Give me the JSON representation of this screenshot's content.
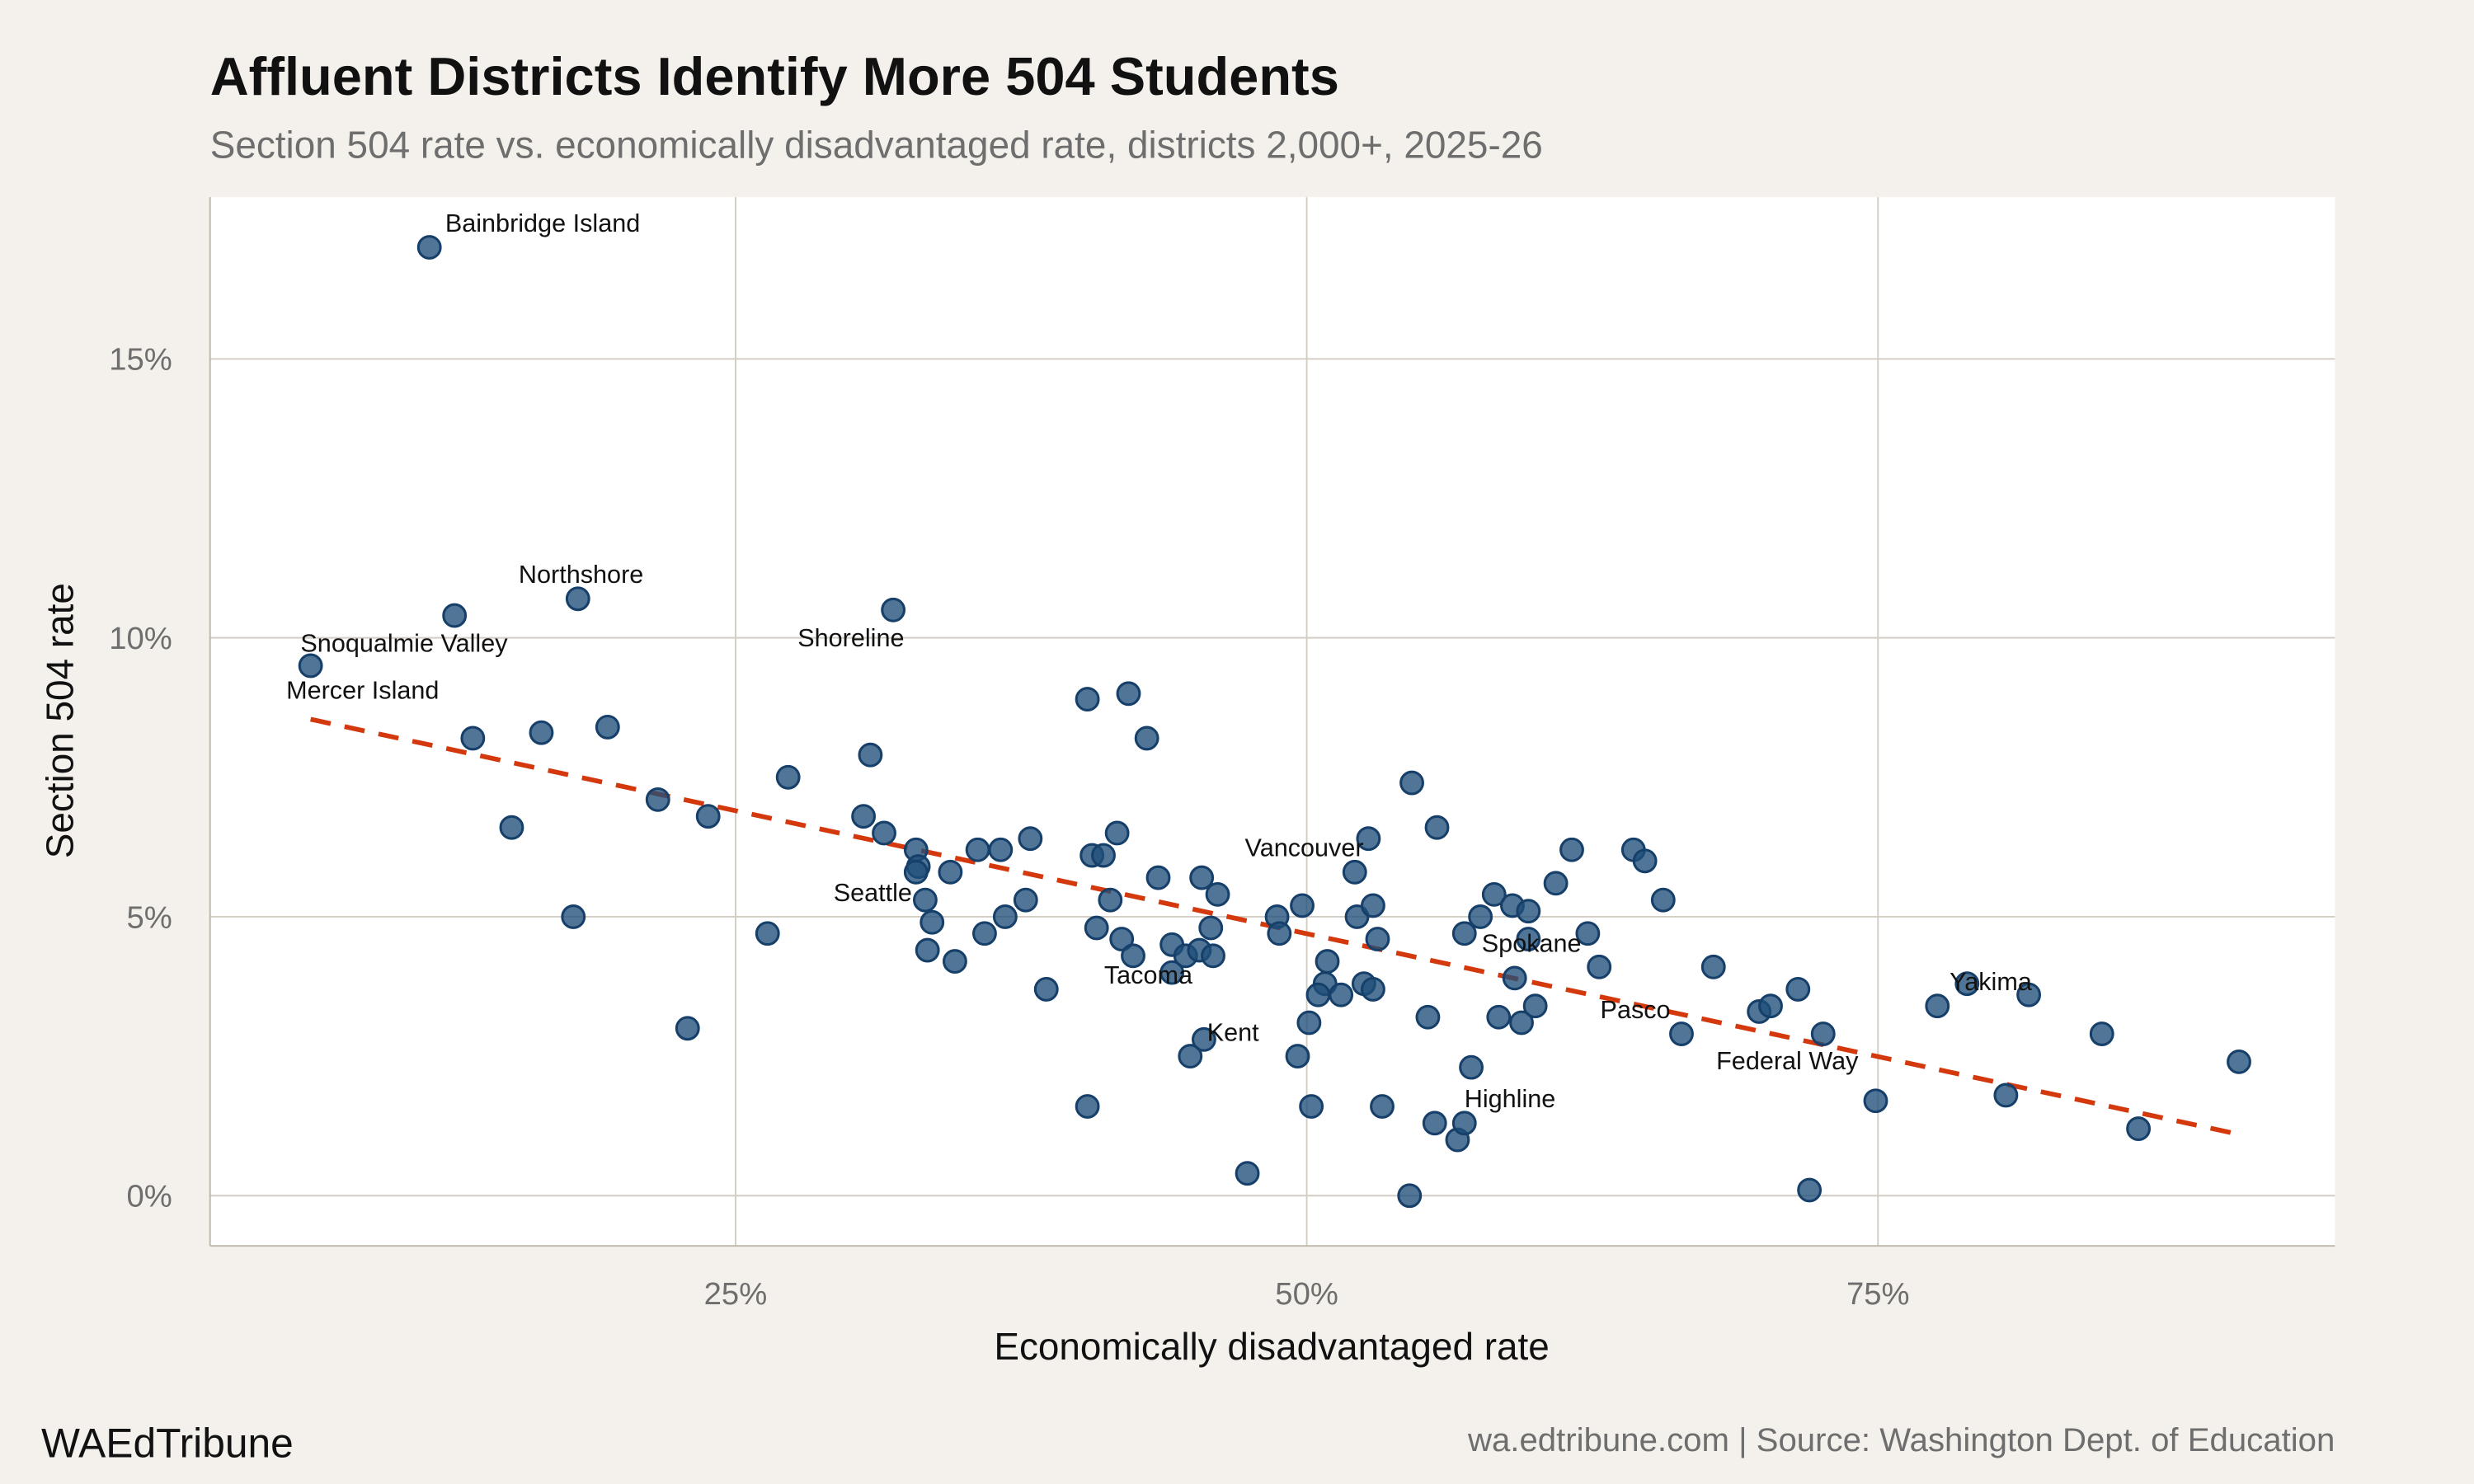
{
  "header": {
    "title": "Affluent Districts Identify More 504 Students",
    "subtitle": "Section 504 rate vs. economically disadvantaged rate, districts 2,000+, 2025-26"
  },
  "footer": {
    "brand": "WAEdTribune",
    "source": "wa.edtribune.com | Source: Washington Dept. of Education"
  },
  "colors": {
    "background": "#f4f1ec",
    "panel": "#ffffff",
    "grid": "#d3cdc3",
    "point": "#1f4e79",
    "trend": "#d4380d"
  },
  "chart_data": {
    "type": "scatter",
    "xlabel": "Economically disadvantaged rate",
    "ylabel": "Section 504 rate",
    "xlim": [
      2,
      95
    ],
    "ylim": [
      -0.9,
      17.9
    ],
    "x_ticks": [
      {
        "value": 25,
        "label": "25%"
      },
      {
        "value": 50,
        "label": "50%"
      },
      {
        "value": 75,
        "label": "75%"
      }
    ],
    "y_ticks": [
      {
        "value": 0,
        "label": "0%"
      },
      {
        "value": 5,
        "label": "5%"
      },
      {
        "value": 10,
        "label": "10%"
      },
      {
        "value": 15,
        "label": "15%"
      }
    ],
    "grid": true,
    "trend_line": {
      "style": "dashed",
      "x": [
        6.4,
        90.8
      ],
      "y": [
        8.54,
        1.1
      ]
    },
    "points": [
      {
        "x": 11.6,
        "y": 17.0,
        "label": "Bainbridge Island"
      },
      {
        "x": 12.7,
        "y": 10.4,
        "label": "Snoqualmie Valley"
      },
      {
        "x": 18.1,
        "y": 10.7,
        "label": "Northshore"
      },
      {
        "x": 6.4,
        "y": 9.5,
        "label": "Mercer Island"
      },
      {
        "x": 13.5,
        "y": 8.2
      },
      {
        "x": 16.5,
        "y": 8.3
      },
      {
        "x": 19.4,
        "y": 8.4
      },
      {
        "x": 15.2,
        "y": 6.6
      },
      {
        "x": 17.9,
        "y": 5.0
      },
      {
        "x": 21.6,
        "y": 7.1
      },
      {
        "x": 23.8,
        "y": 6.8
      },
      {
        "x": 22.9,
        "y": 3.0
      },
      {
        "x": 27.3,
        "y": 7.5
      },
      {
        "x": 26.4,
        "y": 4.7
      },
      {
        "x": 31.9,
        "y": 10.5,
        "label": "Shoreline"
      },
      {
        "x": 30.9,
        "y": 7.9
      },
      {
        "x": 30.6,
        "y": 6.8
      },
      {
        "x": 31.5,
        "y": 6.5
      },
      {
        "x": 32.9,
        "y": 6.2
      },
      {
        "x": 33.0,
        "y": 5.9,
        "label": "Seattle"
      },
      {
        "x": 32.9,
        "y": 5.8
      },
      {
        "x": 33.3,
        "y": 5.3
      },
      {
        "x": 33.6,
        "y": 4.9
      },
      {
        "x": 33.4,
        "y": 4.4
      },
      {
        "x": 34.4,
        "y": 5.8
      },
      {
        "x": 34.6,
        "y": 4.2
      },
      {
        "x": 35.6,
        "y": 6.2
      },
      {
        "x": 36.6,
        "y": 6.2
      },
      {
        "x": 35.9,
        "y": 4.7
      },
      {
        "x": 36.8,
        "y": 5.0
      },
      {
        "x": 37.9,
        "y": 6.4
      },
      {
        "x": 37.7,
        "y": 5.3
      },
      {
        "x": 38.6,
        "y": 3.7
      },
      {
        "x": 40.4,
        "y": 8.9
      },
      {
        "x": 42.2,
        "y": 9.0
      },
      {
        "x": 43.0,
        "y": 8.2
      },
      {
        "x": 40.6,
        "y": 6.1
      },
      {
        "x": 41.1,
        "y": 6.1
      },
      {
        "x": 41.7,
        "y": 6.5
      },
      {
        "x": 41.4,
        "y": 5.3
      },
      {
        "x": 40.8,
        "y": 4.8
      },
      {
        "x": 41.9,
        "y": 4.6
      },
      {
        "x": 42.4,
        "y": 4.3
      },
      {
        "x": 40.4,
        "y": 1.6
      },
      {
        "x": 43.5,
        "y": 5.7
      },
      {
        "x": 44.1,
        "y": 4.5
      },
      {
        "x": 44.1,
        "y": 4.0,
        "label": "Tacoma"
      },
      {
        "x": 44.7,
        "y": 4.3
      },
      {
        "x": 45.3,
        "y": 4.4
      },
      {
        "x": 45.4,
        "y": 5.7
      },
      {
        "x": 46.1,
        "y": 5.4
      },
      {
        "x": 45.8,
        "y": 4.8
      },
      {
        "x": 45.9,
        "y": 4.3
      },
      {
        "x": 45.5,
        "y": 2.8,
        "label": "Kent"
      },
      {
        "x": 44.9,
        "y": 2.5
      },
      {
        "x": 47.4,
        "y": 0.4
      },
      {
        "x": 48.7,
        "y": 5.0
      },
      {
        "x": 48.8,
        "y": 4.7
      },
      {
        "x": 49.8,
        "y": 5.2
      },
      {
        "x": 49.6,
        "y": 2.5
      },
      {
        "x": 50.1,
        "y": 3.1
      },
      {
        "x": 50.2,
        "y": 1.6
      },
      {
        "x": 50.9,
        "y": 4.2
      },
      {
        "x": 50.8,
        "y": 3.8
      },
      {
        "x": 50.5,
        "y": 3.6
      },
      {
        "x": 51.5,
        "y": 3.6
      },
      {
        "x": 52.1,
        "y": 5.8,
        "label": "Vancouver"
      },
      {
        "x": 52.7,
        "y": 6.4
      },
      {
        "x": 52.2,
        "y": 5.0
      },
      {
        "x": 52.9,
        "y": 5.2
      },
      {
        "x": 53.1,
        "y": 4.6
      },
      {
        "x": 52.5,
        "y": 3.8
      },
      {
        "x": 52.9,
        "y": 3.7
      },
      {
        "x": 53.3,
        "y": 1.6
      },
      {
        "x": 54.6,
        "y": 7.4
      },
      {
        "x": 55.7,
        "y": 6.6
      },
      {
        "x": 55.3,
        "y": 3.2
      },
      {
        "x": 54.5,
        "y": 0.0
      },
      {
        "x": 55.6,
        "y": 1.3
      },
      {
        "x": 56.6,
        "y": 1.0
      },
      {
        "x": 56.9,
        "y": 1.3,
        "label": "Highline"
      },
      {
        "x": 57.2,
        "y": 2.3
      },
      {
        "x": 56.9,
        "y": 4.7
      },
      {
        "x": 57.6,
        "y": 5.0
      },
      {
        "x": 58.2,
        "y": 5.4
      },
      {
        "x": 59.0,
        "y": 5.2
      },
      {
        "x": 59.7,
        "y": 5.1
      },
      {
        "x": 59.7,
        "y": 4.6,
        "label": "Spokane"
      },
      {
        "x": 59.1,
        "y": 3.9
      },
      {
        "x": 58.4,
        "y": 3.2
      },
      {
        "x": 59.4,
        "y": 3.1
      },
      {
        "x": 60.0,
        "y": 3.4
      },
      {
        "x": 60.9,
        "y": 5.6
      },
      {
        "x": 61.6,
        "y": 6.2
      },
      {
        "x": 62.3,
        "y": 4.7
      },
      {
        "x": 62.8,
        "y": 4.1
      },
      {
        "x": 64.3,
        "y": 6.2
      },
      {
        "x": 64.8,
        "y": 6.0
      },
      {
        "x": 65.6,
        "y": 5.3
      },
      {
        "x": 66.4,
        "y": 2.9,
        "label": "Pasco"
      },
      {
        "x": 67.8,
        "y": 4.1
      },
      {
        "x": 69.8,
        "y": 3.3
      },
      {
        "x": 70.3,
        "y": 3.4
      },
      {
        "x": 71.5,
        "y": 3.7
      },
      {
        "x": 72.6,
        "y": 2.9
      },
      {
        "x": 72.0,
        "y": 0.1
      },
      {
        "x": 74.9,
        "y": 1.7,
        "label": "Federal Way"
      },
      {
        "x": 77.6,
        "y": 3.4
      },
      {
        "x": 78.9,
        "y": 3.8,
        "label": "Yakima"
      },
      {
        "x": 81.6,
        "y": 3.6
      },
      {
        "x": 80.6,
        "y": 1.8
      },
      {
        "x": 84.8,
        "y": 2.9
      },
      {
        "x": 86.4,
        "y": 1.2
      },
      {
        "x": 90.8,
        "y": 2.4
      }
    ]
  }
}
